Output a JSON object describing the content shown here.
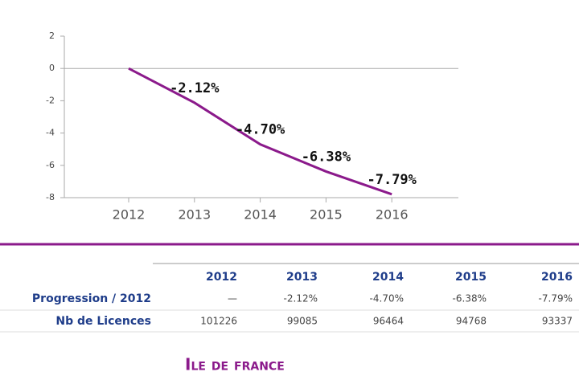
{
  "chart_data": {
    "type": "line",
    "categories": [
      "2012",
      "2013",
      "2014",
      "2015",
      "2016"
    ],
    "values": [
      0,
      -2.12,
      -4.7,
      -6.38,
      -7.79
    ],
    "value_labels": [
      null,
      "-2.12%",
      "-4.70%",
      "-6.38%",
      "-7.79%"
    ],
    "color": "#8b1a8b",
    "ylim": [
      -8,
      2
    ],
    "yticks": [
      2,
      0,
      -2,
      -4,
      -6,
      -8
    ]
  },
  "table": {
    "columns": [
      "2012",
      "2013",
      "2014",
      "2015",
      "2016"
    ],
    "rows": [
      [
        "Progression / 2012",
        "—",
        "-2.12%",
        "-4.70%",
        "-6.38%",
        "-7.79%"
      ],
      [
        "Nb de Licences",
        101226,
        99085,
        96464,
        94768,
        93337
      ]
    ]
  },
  "footer": {
    "title": "Ile de france"
  }
}
